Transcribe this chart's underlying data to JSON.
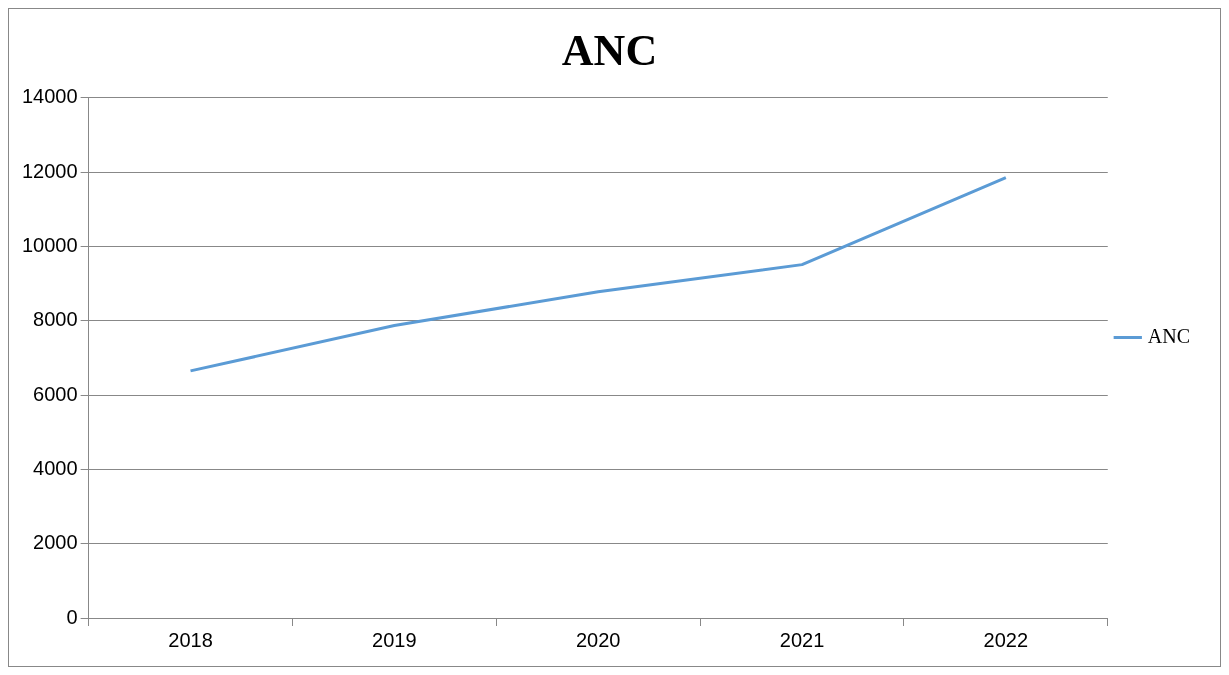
{
  "chart_data": {
    "type": "line",
    "title": "ANC",
    "categories": [
      "2018",
      "2019",
      "2020",
      "2021",
      "2022"
    ],
    "series": [
      {
        "name": "ANC",
        "color": "#5b9bd5",
        "values": [
          6650,
          7870,
          8780,
          9510,
          11850
        ]
      }
    ],
    "ylim": [
      0,
      14000
    ],
    "yticks": [
      0,
      2000,
      4000,
      6000,
      8000,
      10000,
      12000,
      14000
    ],
    "grid": "y",
    "legend": "right",
    "marker": "none",
    "line_style": "solid"
  }
}
